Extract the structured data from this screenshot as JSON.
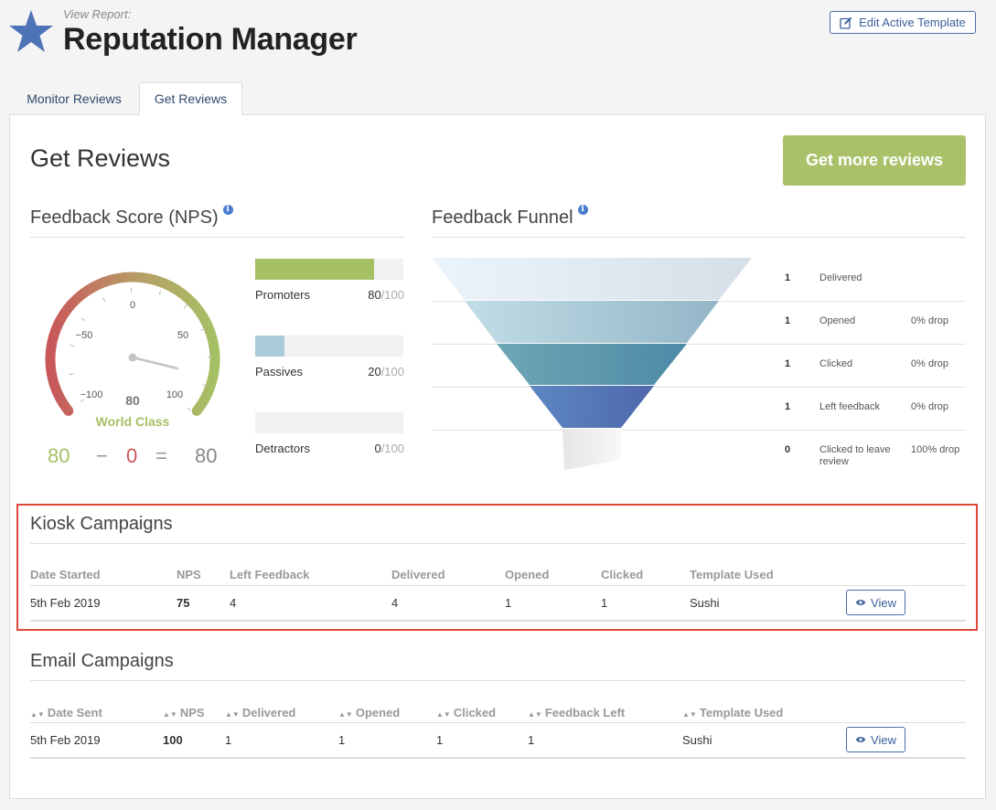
{
  "header": {
    "kicker": "View Report:",
    "title": "Reputation Manager",
    "edit_template_label": "Edit Active Template"
  },
  "tabs": [
    {
      "label": "Monitor Reviews",
      "active": false
    },
    {
      "label": "Get Reviews",
      "active": true
    }
  ],
  "page": {
    "title": "Get Reviews",
    "cta_label": "Get more reviews"
  },
  "nps": {
    "title": "Feedback Score (NPS)",
    "gauge_ticks": [
      "−100",
      "−50",
      "0",
      "50",
      "100"
    ],
    "score": "80",
    "rating": "World Class",
    "score_value": 80,
    "equation": {
      "promoters": "80",
      "minus": "−",
      "detractors": "0",
      "equals": "=",
      "result": "80"
    },
    "bars": [
      {
        "label": "Promoters",
        "value": "80",
        "total": "/100",
        "fraction": 0.8,
        "color": "#a6c064"
      },
      {
        "label": "Passives",
        "value": "20",
        "total": "/100",
        "fraction": 0.2,
        "color": "#a9cad8"
      },
      {
        "label": "Detractors",
        "value": "0",
        "total": "/100",
        "fraction": 0.0,
        "color": "#e07a70"
      }
    ]
  },
  "funnel": {
    "title": "Feedback Funnel",
    "rows": [
      {
        "count": "1",
        "label": "Delivered",
        "drop": ""
      },
      {
        "count": "1",
        "label": "Opened",
        "drop": "0% drop"
      },
      {
        "count": "1",
        "label": "Clicked",
        "drop": "0% drop"
      },
      {
        "count": "1",
        "label": "Left feedback",
        "drop": "0% drop"
      },
      {
        "count": "0",
        "label": "Clicked to leave review",
        "drop": "100% drop"
      }
    ]
  },
  "kiosk": {
    "title": "Kiosk Campaigns",
    "headers": [
      "Date Started",
      "NPS",
      "Left Feedback",
      "Delivered",
      "Opened",
      "Clicked",
      "Template Used"
    ],
    "rows": [
      {
        "date": "5th Feb 2019",
        "nps": "75",
        "left_feedback": "4",
        "delivered": "4",
        "opened": "1",
        "clicked": "1",
        "template": "Sushi",
        "action": "View"
      }
    ]
  },
  "email": {
    "title": "Email Campaigns",
    "headers": [
      "Date Sent",
      "NPS",
      "Delivered",
      "Opened",
      "Clicked",
      "Feedback Left",
      "Template Used"
    ],
    "rows": [
      {
        "date": "5th Feb 2019",
        "nps": "100",
        "delivered": "1",
        "opened": "1",
        "clicked": "1",
        "feedback_left": "1",
        "template": "Sushi",
        "action": "View"
      }
    ]
  },
  "colors": {
    "accent_green": "#a9c26a",
    "link_blue": "#3a5f9a",
    "highlight_red": "#e0453a"
  }
}
